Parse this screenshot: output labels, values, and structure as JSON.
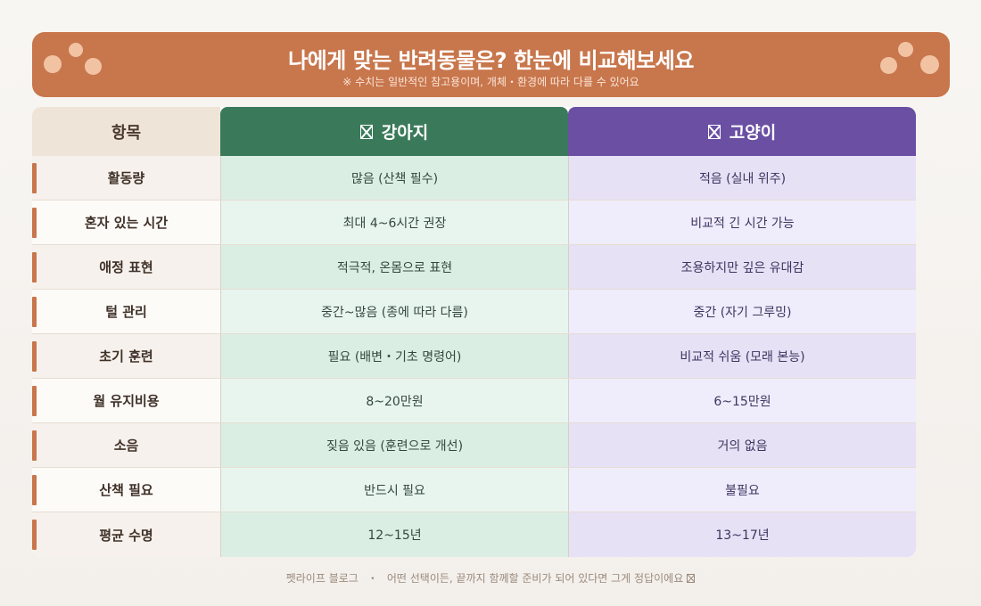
{
  "banner": {
    "title": "나에게 맞는 반려동물은? 한눈에 비교해보세요",
    "subtitle": "※ 수치는 일반적인 참고용이며, 개체・환경에 따라 다를 수 있어요"
  },
  "table": {
    "header": {
      "label": "항목",
      "dog": "강아지",
      "cat": "고양이",
      "dog_icon": "pet-icon",
      "cat_icon": "pet-icon"
    },
    "rows": [
      {
        "label": "활동량",
        "dog": "많음 (산책 필수)",
        "cat": "적음 (실내 위주)"
      },
      {
        "label": "혼자 있는 시간",
        "dog": "최대 4~6시간 권장",
        "cat": "비교적 긴 시간 가능"
      },
      {
        "label": "애정 표현",
        "dog": "적극적, 온몸으로 표현",
        "cat": "조용하지만 깊은 유대감"
      },
      {
        "label": "털 관리",
        "dog": "중간~많음 (종에 따라 다름)",
        "cat": "중간 (자기 그루밍)"
      },
      {
        "label": "초기 훈련",
        "dog": "필요 (배변・기초 명령어)",
        "cat": "비교적 쉬움 (모래 본능)"
      },
      {
        "label": "월 유지비용",
        "dog": "8~20만원",
        "cat": "6~15만원"
      },
      {
        "label": "소음",
        "dog": "짖음 있음 (훈련으로 개선)",
        "cat": "거의 없음"
      },
      {
        "label": "산책 필요",
        "dog": "반드시 필요",
        "cat": "불필요"
      },
      {
        "label": "평균 수명",
        "dog": "12~15년",
        "cat": "13~17년"
      }
    ]
  },
  "footer": {
    "brand": "펫라이프 블로그",
    "separator": "・",
    "message": "어떤 선택이든, 끝까지 함께할 준비가 되어 있다면 그게 정답이에요",
    "icon": "pet-icon"
  },
  "colors": {
    "banner": "#c8764c",
    "dog_header": "#3a7a5a",
    "cat_header": "#6a4fa3",
    "accent": "#c8764c"
  }
}
